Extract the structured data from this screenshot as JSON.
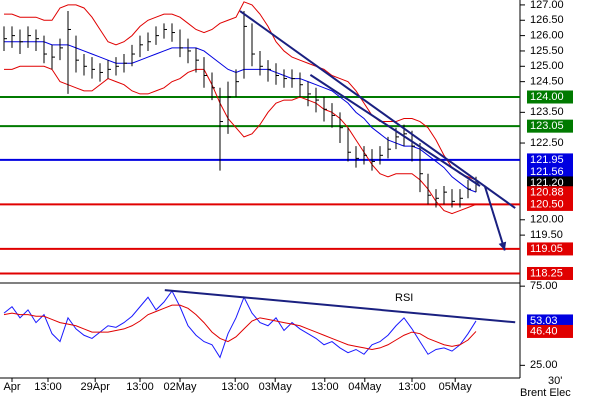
{
  "chart_data": [
    {
      "type": "ohlc",
      "xlim": [
        -0.5,
        64.5
      ],
      "ylim": [
        117.94,
        127.16
      ],
      "yticks": [
        {
          "value": 127,
          "label": "127.00"
        },
        {
          "value": 126.5,
          "label": "126.50"
        },
        {
          "value": 126,
          "label": "126.00"
        },
        {
          "value": 125.5,
          "label": "125.50"
        },
        {
          "value": 125,
          "label": "125.00"
        },
        {
          "value": 124.5,
          "label": "124.50"
        },
        {
          "value": 123.5,
          "label": "123.50"
        },
        {
          "value": 122.5,
          "label": "122.50"
        },
        {
          "value": 120,
          "label": "120.00"
        },
        {
          "value": 119.5,
          "label": "119.50"
        }
      ],
      "color": "#000000",
      "close": [
        125.9,
        126.0,
        125.8,
        126.0,
        125.9,
        125.4,
        125.3,
        125.6,
        126.2,
        125.2,
        125.0,
        124.9,
        124.8,
        124.9,
        125.0,
        125.1,
        125.4,
        125.7,
        125.8,
        126.0,
        126.2,
        126.1,
        125.6,
        125.5,
        125.2,
        124.7,
        124.3,
        123.2,
        124.0,
        124.5,
        126.3,
        125.4,
        125.0,
        124.9,
        124.7,
        124.6,
        124.6,
        124.4,
        124.1,
        123.9,
        123.6,
        123.4,
        123.0,
        122.2,
        122.0,
        122.1,
        121.9,
        122.1,
        122.3,
        122.7,
        122.8,
        122.4,
        121.5,
        120.8,
        120.7,
        120.9,
        120.6,
        120.7,
        121.0,
        121.2
      ],
      "high": [
        126.3,
        126.3,
        126.2,
        126.3,
        126.2,
        126.0,
        125.7,
        125.9,
        126.8,
        126.0,
        125.4,
        125.3,
        125.1,
        125.2,
        125.3,
        125.4,
        125.7,
        126.0,
        126.1,
        126.3,
        126.4,
        126.4,
        126.2,
        125.9,
        125.6,
        125.3,
        124.8,
        124.3,
        124.5,
        124.9,
        126.8,
        126.4,
        125.5,
        125.2,
        125.1,
        124.9,
        124.9,
        124.8,
        124.5,
        124.3,
        124.0,
        123.8,
        123.5,
        123.0,
        122.4,
        122.4,
        122.3,
        122.4,
        122.7,
        123.0,
        123.1,
        122.9,
        122.5,
        121.5,
        121.0,
        121.1,
        121.0,
        121.0,
        121.3,
        121.4
      ],
      "low": [
        125.5,
        125.6,
        125.4,
        125.6,
        125.5,
        125.1,
        124.9,
        125.2,
        124.1,
        124.8,
        124.7,
        124.6,
        124.5,
        124.6,
        124.7,
        124.8,
        125.0,
        125.3,
        125.5,
        125.7,
        125.9,
        125.8,
        125.3,
        125.1,
        124.8,
        124.3,
        123.9,
        121.6,
        122.8,
        124.0,
        124.6,
        125.0,
        124.7,
        124.5,
        124.4,
        124.3,
        124.3,
        124.0,
        123.7,
        123.5,
        123.2,
        123.0,
        122.5,
        121.9,
        121.7,
        121.8,
        121.6,
        121.8,
        122.0,
        122.3,
        122.4,
        121.9,
        120.9,
        120.5,
        120.4,
        120.5,
        120.4,
        120.4,
        120.7,
        120.9
      ],
      "bands": [
        {
          "color": "#e00000",
          "values": [
            126.7,
            126.7,
            126.6,
            126.6,
            126.6,
            126.5,
            126.5,
            126.9,
            127.0,
            127.0,
            126.9,
            126.6,
            126.2,
            125.8,
            125.7,
            125.8,
            126.0,
            126.3,
            126.5,
            126.6,
            126.7,
            126.7,
            126.6,
            126.4,
            126.2,
            126.1,
            126.2,
            126.4,
            126.5,
            126.6,
            127.1,
            127.0,
            126.7,
            126.3,
            125.8,
            125.5,
            125.3,
            125.2,
            125.1,
            125.0,
            124.9,
            124.7,
            124.6,
            124.5,
            124.2,
            123.8,
            123.4,
            123.2,
            123.2,
            123.2,
            123.3,
            123.3,
            123.2,
            123.0,
            122.6,
            122.1,
            121.7,
            121.5,
            121.4,
            121.3
          ]
        },
        {
          "color": "#0000e0",
          "values": [
            125.8,
            125.8,
            125.8,
            125.8,
            125.8,
            125.8,
            125.7,
            125.7,
            125.7,
            125.6,
            125.5,
            125.4,
            125.3,
            125.2,
            125.1,
            125.1,
            125.1,
            125.2,
            125.3,
            125.4,
            125.5,
            125.6,
            125.6,
            125.6,
            125.6,
            125.5,
            125.3,
            125.1,
            124.9,
            124.8,
            124.9,
            124.9,
            124.9,
            124.9,
            124.8,
            124.7,
            124.6,
            124.6,
            124.5,
            124.4,
            124.3,
            124.2,
            124.0,
            123.8,
            123.5,
            123.3,
            123.0,
            122.8,
            122.6,
            122.5,
            122.4,
            122.4,
            122.3,
            122.1,
            121.9,
            121.7,
            121.4,
            121.2,
            121.0,
            120.9
          ]
        },
        {
          "color": "#e00000",
          "values": [
            124.9,
            124.9,
            125.0,
            125.0,
            125.0,
            125.0,
            124.9,
            124.5,
            124.4,
            124.3,
            124.2,
            124.2,
            124.4,
            124.6,
            124.5,
            124.4,
            124.2,
            124.1,
            124.1,
            124.2,
            124.3,
            124.5,
            124.6,
            124.8,
            124.9,
            124.9,
            124.4,
            123.8,
            123.3,
            123.0,
            122.7,
            122.8,
            123.1,
            123.5,
            123.8,
            123.9,
            123.9,
            124.0,
            123.9,
            123.8,
            123.6,
            123.5,
            123.3,
            123.0,
            122.6,
            122.2,
            121.8,
            121.5,
            121.4,
            121.5,
            121.5,
            121.5,
            121.3,
            121.0,
            120.6,
            120.3,
            120.2,
            120.3,
            120.4,
            120.5
          ]
        }
      ],
      "levels": [
        {
          "value": 124,
          "label": "124.00",
          "color": "#007a00"
        },
        {
          "value": 123.05,
          "label": "123.05",
          "color": "#007a00"
        },
        {
          "value": 121.95,
          "label": "121.95",
          "color": "#0000e0"
        },
        {
          "value": 120.5,
          "label": "120.50",
          "color": "#e00000"
        },
        {
          "value": 119.05,
          "label": "119.05",
          "color": "#e00000"
        },
        {
          "value": 118.25,
          "label": "118.25",
          "color": "#e00000"
        }
      ],
      "markers": [
        {
          "value": 121.56,
          "label": "121.56",
          "color": "#0000e0"
        },
        {
          "value": 121.2,
          "label": "121.20",
          "color": "#000000"
        },
        {
          "value": 120.88,
          "label": "120.88",
          "color": "#e00000"
        }
      ],
      "trendlines": [
        {
          "x": [
            29.5,
            63.9
          ],
          "y": [
            126.8,
            120.38
          ],
          "color": "#1a2080"
        },
        {
          "x": [
            38.3,
            59.5
          ],
          "y": [
            124.72,
            121.1
          ],
          "color": "#1a2080"
        }
      ],
      "arrow": {
        "x": [
          60.1,
          62.6
        ],
        "y": [
          121.1,
          119.0
        ],
        "color": "#1a2080"
      }
    },
    {
      "type": "line",
      "title": "RSI",
      "xlim": [
        -0.5,
        64.5
      ],
      "ylim": [
        17,
        77
      ],
      "yticks": [
        {
          "value": 75,
          "label": "75.00"
        },
        {
          "value": 25,
          "label": "25.00"
        }
      ],
      "series": [
        {
          "color": "#1a1aff",
          "values": [
            58,
            62,
            55,
            60,
            52,
            57,
            45,
            40,
            55,
            48,
            44,
            42,
            46,
            50,
            49,
            52,
            56,
            62,
            68,
            60,
            65,
            72,
            62,
            50,
            44,
            40,
            38,
            30,
            45,
            55,
            68,
            58,
            52,
            50,
            55,
            47,
            52,
            48,
            45,
            42,
            38,
            40,
            36,
            33,
            35,
            32,
            38,
            40,
            44,
            50,
            55,
            48,
            40,
            32,
            35,
            36,
            34,
            38,
            45,
            53.03
          ]
        },
        {
          "color": "#e00000",
          "values": [
            57,
            58,
            57,
            57,
            56,
            56,
            54,
            52,
            51,
            50,
            48,
            46,
            46,
            46,
            47,
            48,
            50,
            53,
            57,
            59,
            61,
            63,
            63,
            61,
            57,
            52,
            46,
            42,
            40,
            43,
            48,
            53,
            55,
            54,
            53,
            52,
            51,
            50,
            48,
            46,
            44,
            42,
            40,
            38,
            37,
            36,
            35,
            36,
            38,
            41,
            44,
            46,
            45,
            42,
            40,
            38,
            37,
            38,
            41,
            46.4
          ]
        }
      ],
      "markers": [
        {
          "value": 53.03,
          "label": "53.03",
          "color": "#0000e0"
        },
        {
          "value": 46.4,
          "label": "46.40",
          "color": "#e00000"
        }
      ],
      "trendlines": [
        {
          "x": [
            20.1,
            63.9
          ],
          "y": [
            72.5,
            52.2
          ],
          "color": "#1a2080"
        }
      ],
      "xticks": [
        {
          "value": 1,
          "label": "Apr"
        },
        {
          "value": 5.5,
          "label": "13:00"
        },
        {
          "value": 11.4,
          "label": "29Apr"
        },
        {
          "value": 17,
          "label": "13:00"
        },
        {
          "value": 22,
          "label": "02May"
        },
        {
          "value": 28.9,
          "label": "13:00"
        },
        {
          "value": 33.9,
          "label": "03May"
        },
        {
          "value": 40.1,
          "label": "13:00"
        },
        {
          "value": 45.1,
          "label": "04May"
        },
        {
          "value": 51,
          "label": "13:00"
        },
        {
          "value": 56.4,
          "label": "05May"
        }
      ]
    }
  ],
  "footer": {
    "period": "30'",
    "instrument": "Brent Elec"
  }
}
